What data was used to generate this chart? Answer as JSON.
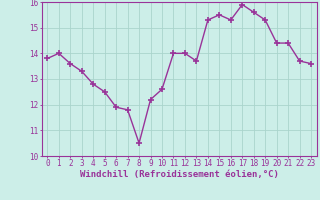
{
  "x": [
    0,
    1,
    2,
    3,
    4,
    5,
    6,
    7,
    8,
    9,
    10,
    11,
    12,
    13,
    14,
    15,
    16,
    17,
    18,
    19,
    20,
    21,
    22,
    23
  ],
  "y": [
    13.8,
    14.0,
    13.6,
    13.3,
    12.8,
    12.5,
    11.9,
    11.8,
    10.5,
    12.2,
    12.6,
    14.0,
    14.0,
    13.7,
    15.3,
    15.5,
    15.3,
    15.9,
    15.6,
    15.3,
    14.4,
    14.4,
    13.7,
    13.6
  ],
  "line_color": "#993399",
  "marker": "+",
  "marker_size": 4,
  "bg_color": "#cceee8",
  "grid_color": "#aad4cc",
  "xlabel": "Windchill (Refroidissement éolien,°C)",
  "ylim": [
    10,
    16
  ],
  "xlim": [
    -0.5,
    23.5
  ],
  "yticks": [
    10,
    11,
    12,
    13,
    14,
    15,
    16
  ],
  "xticks": [
    0,
    1,
    2,
    3,
    4,
    5,
    6,
    7,
    8,
    9,
    10,
    11,
    12,
    13,
    14,
    15,
    16,
    17,
    18,
    19,
    20,
    21,
    22,
    23
  ],
  "tick_label_fontsize": 5.5,
  "xlabel_fontsize": 6.5,
  "label_color": "#993399",
  "axis_color": "#993399",
  "linewidth": 1.0,
  "marker_linewidth": 1.2
}
